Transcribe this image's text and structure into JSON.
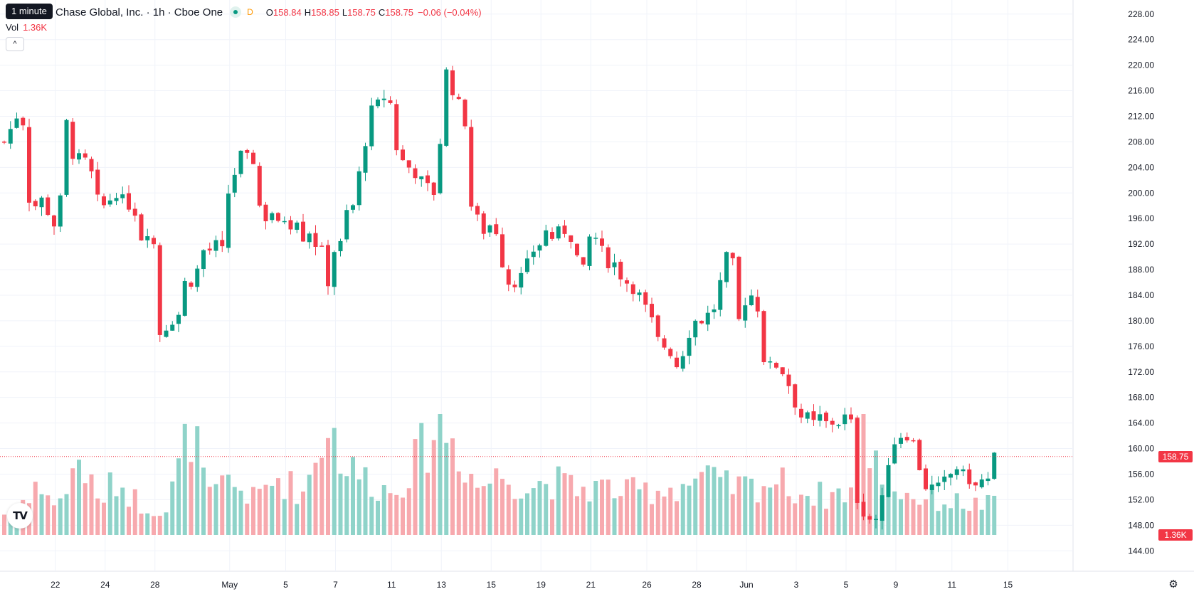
{
  "tooltip": {
    "text": "1 minute"
  },
  "legend": {
    "symbol": "Chase Global, Inc. · 1h · Cboe One",
    "delayed_badge": "D",
    "open_label": "O",
    "open_value": "158.84",
    "high_label": "H",
    "high_value": "158.85",
    "low_label": "L",
    "low_value": "158.75",
    "close_label": "C",
    "close_value": "158.75",
    "change": "−0.06 (−0.04%)"
  },
  "volume_legend": {
    "label": "Vol",
    "value": "1.36K"
  },
  "collapse_icon": "chevron-up-icon",
  "logo_text": "TV",
  "settings_icon": "gear-icon",
  "last_price_tag": "158.75",
  "last_volume_tag": "1.36K",
  "colors": {
    "up": "#089981",
    "down": "#f23645",
    "up_volume": "#8fd3c9",
    "down_volume": "#f7a9ae",
    "grid": "#f0f3fa"
  },
  "chart_data": {
    "type": "candlestick",
    "interval": "1h",
    "price_axis": {
      "ticks": [
        "228.00",
        "224.00",
        "220.00",
        "216.00",
        "212.00",
        "208.00",
        "204.00",
        "200.00",
        "196.00",
        "192.00",
        "188.00",
        "184.00",
        "180.00",
        "176.00",
        "172.00",
        "168.00",
        "164.00",
        "160.00",
        "156.00",
        "152.00",
        "148.00",
        "144.00"
      ],
      "range": [
        140.8,
        230.2
      ]
    },
    "time_axis": {
      "labels": [
        "22",
        "24",
        "28",
        "May",
        "5",
        "7",
        "11",
        "13",
        "15",
        "19",
        "21",
        "26",
        "28",
        "Jun",
        "3",
        "5",
        "9",
        "11",
        "15"
      ]
    },
    "last_price": 158.75,
    "last_volume": "1.36K",
    "price_path": [
      [
        0,
        208
      ],
      [
        2,
        212
      ],
      [
        3,
        211
      ],
      [
        4,
        199
      ],
      [
        5,
        198
      ],
      [
        6,
        199
      ],
      [
        7,
        197
      ],
      [
        8,
        195
      ],
      [
        9,
        199
      ],
      [
        10,
        211
      ],
      [
        11,
        206
      ],
      [
        13,
        205
      ],
      [
        14,
        203
      ],
      [
        15,
        199
      ],
      [
        16,
        198
      ],
      [
        17,
        199
      ],
      [
        18,
        200
      ],
      [
        19,
        199
      ],
      [
        20,
        198
      ],
      [
        21,
        197
      ],
      [
        22,
        193
      ],
      [
        23,
        194
      ],
      [
        24,
        192
      ],
      [
        25,
        178
      ],
      [
        26,
        179
      ],
      [
        27,
        180
      ],
      [
        28,
        181
      ],
      [
        29,
        186
      ],
      [
        30,
        186
      ],
      [
        31,
        188
      ],
      [
        32,
        191
      ],
      [
        33,
        191
      ],
      [
        34,
        192
      ],
      [
        35,
        191
      ],
      [
        36,
        200
      ],
      [
        38,
        206
      ],
      [
        40,
        205
      ],
      [
        41,
        198
      ],
      [
        42,
        196
      ],
      [
        43,
        197
      ],
      [
        44,
        195
      ],
      [
        45,
        196
      ],
      [
        46,
        195
      ],
      [
        47,
        196
      ],
      [
        48,
        193
      ],
      [
        49,
        194
      ],
      [
        50,
        192
      ],
      [
        51,
        191
      ],
      [
        52,
        186
      ],
      [
        53,
        191
      ],
      [
        54,
        192
      ],
      [
        55,
        197
      ],
      [
        56,
        198
      ],
      [
        57,
        203
      ],
      [
        58,
        208
      ],
      [
        59,
        213
      ],
      [
        60,
        214
      ],
      [
        61,
        215
      ],
      [
        62,
        214
      ],
      [
        63,
        207
      ],
      [
        64,
        205
      ],
      [
        65,
        204
      ],
      [
        66,
        203
      ],
      [
        67,
        202
      ],
      [
        68,
        201
      ],
      [
        69,
        200
      ],
      [
        70,
        208
      ],
      [
        71,
        219
      ],
      [
        72,
        216
      ],
      [
        73,
        214
      ],
      [
        74,
        211
      ],
      [
        75,
        198
      ],
      [
        76,
        196
      ],
      [
        77,
        194
      ],
      [
        78,
        195
      ],
      [
        79,
        194
      ],
      [
        80,
        189
      ],
      [
        81,
        186
      ],
      [
        82,
        186
      ],
      [
        83,
        187
      ],
      [
        84,
        189
      ],
      [
        85,
        191
      ],
      [
        86,
        192
      ],
      [
        87,
        194
      ],
      [
        88,
        193
      ],
      [
        89,
        194
      ],
      [
        90,
        194
      ],
      [
        91,
        193
      ],
      [
        92,
        190
      ],
      [
        93,
        188
      ],
      [
        94,
        193
      ],
      [
        95,
        193
      ],
      [
        96,
        191
      ],
      [
        97,
        189
      ],
      [
        98,
        189
      ],
      [
        99,
        187
      ],
      [
        100,
        186
      ],
      [
        101,
        185
      ],
      [
        102,
        184
      ],
      [
        103,
        182
      ],
      [
        104,
        180
      ],
      [
        105,
        177
      ],
      [
        106,
        176
      ],
      [
        107,
        175
      ],
      [
        108,
        173
      ],
      [
        109,
        175
      ],
      [
        110,
        178
      ],
      [
        111,
        180
      ],
      [
        112,
        180
      ],
      [
        113,
        181
      ],
      [
        114,
        182
      ],
      [
        115,
        186
      ],
      [
        116,
        190
      ],
      [
        117,
        189
      ],
      [
        118,
        180
      ],
      [
        119,
        183
      ],
      [
        120,
        184
      ],
      [
        121,
        182
      ],
      [
        122,
        174
      ],
      [
        123,
        173
      ],
      [
        124,
        173
      ],
      [
        125,
        172
      ],
      [
        126,
        170
      ],
      [
        127,
        167
      ],
      [
        128,
        165
      ],
      [
        129,
        165
      ],
      [
        130,
        164
      ],
      [
        131,
        165
      ],
      [
        132,
        164
      ],
      [
        133,
        164
      ],
      [
        134,
        164
      ],
      [
        135,
        165
      ],
      [
        136,
        164
      ],
      [
        137,
        152
      ],
      [
        138,
        150
      ],
      [
        139,
        149
      ],
      [
        140,
        149
      ],
      [
        141,
        152
      ],
      [
        142,
        158
      ],
      [
        143,
        161
      ],
      [
        144,
        162
      ],
      [
        145,
        162
      ],
      [
        146,
        161
      ],
      [
        147,
        157
      ],
      [
        148,
        154
      ],
      [
        149,
        154
      ],
      [
        150,
        154
      ],
      [
        151,
        155
      ],
      [
        152,
        156
      ],
      [
        153,
        157
      ],
      [
        154,
        156
      ],
      [
        155,
        155
      ],
      [
        156,
        154
      ],
      [
        157,
        155
      ],
      [
        158,
        155
      ],
      [
        159,
        158.75
      ]
    ],
    "volume_path": [
      [
        0,
        0.35
      ],
      [
        2,
        0.45
      ],
      [
        5,
        0.85
      ],
      [
        7,
        0.55
      ],
      [
        10,
        0.7
      ],
      [
        12,
        1.3
      ],
      [
        15,
        0.55
      ],
      [
        18,
        0.9
      ],
      [
        22,
        0.5
      ],
      [
        26,
        0.4
      ],
      [
        30,
        1.8
      ],
      [
        33,
        0.6
      ],
      [
        36,
        0.9
      ],
      [
        40,
        0.6
      ],
      [
        44,
        0.95
      ],
      [
        48,
        0.7
      ],
      [
        52,
        1.9
      ],
      [
        55,
        1.1
      ],
      [
        58,
        0.95
      ],
      [
        62,
        0.7
      ],
      [
        66,
        1.2
      ],
      [
        70,
        1.9
      ],
      [
        73,
        1.4
      ],
      [
        76,
        0.8
      ],
      [
        80,
        1.0
      ],
      [
        84,
        0.8
      ],
      [
        88,
        0.9
      ],
      [
        92,
        0.75
      ],
      [
        96,
        0.8
      ],
      [
        100,
        0.7
      ],
      [
        104,
        0.75
      ],
      [
        108,
        0.8
      ],
      [
        112,
        0.95
      ],
      [
        116,
        0.8
      ],
      [
        120,
        0.8
      ],
      [
        124,
        0.9
      ],
      [
        128,
        0.7
      ],
      [
        132,
        0.65
      ],
      [
        136,
        0.75
      ],
      [
        137,
        1.9
      ],
      [
        140,
        1.2
      ],
      [
        144,
        0.7
      ],
      [
        148,
        0.6
      ],
      [
        152,
        0.55
      ],
      [
        156,
        0.5
      ],
      [
        159,
        0.5
      ]
    ]
  }
}
